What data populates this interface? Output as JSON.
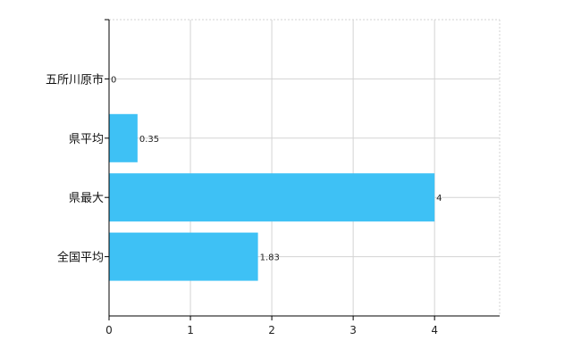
{
  "chart_data": {
    "type": "bar",
    "orientation": "horizontal",
    "categories": [
      "五所川原市",
      "県平均",
      "県最大",
      "全国平均"
    ],
    "values": [
      0,
      0.35,
      4,
      1.83
    ],
    "value_labels": [
      "0",
      "0.35",
      "4",
      "1.83"
    ],
    "x_ticks": [
      "0",
      "1",
      "2",
      "3",
      "4"
    ],
    "xlim": [
      0,
      4.8
    ],
    "grid": true,
    "legend": "none",
    "colors": {
      "bar": "#3ec1f5",
      "grid": "#d3d3d3",
      "axis": "#000000"
    }
  }
}
